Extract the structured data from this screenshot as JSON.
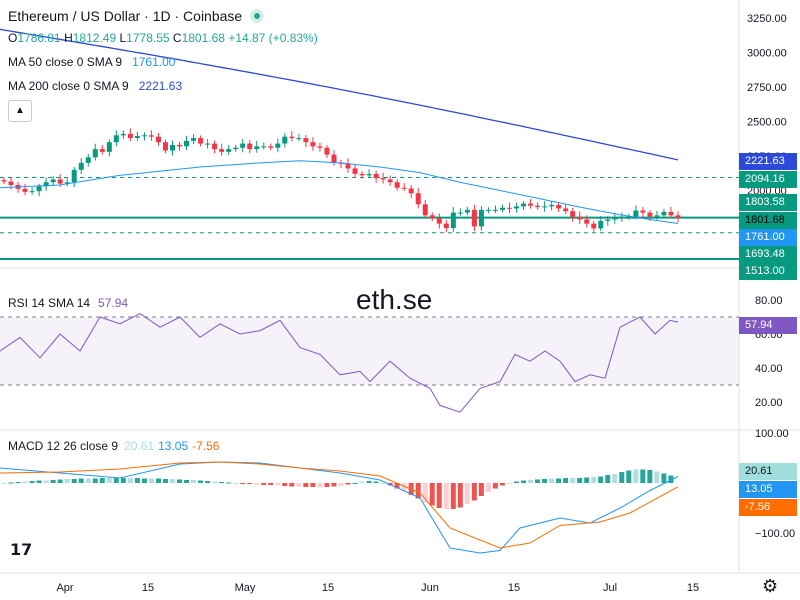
{
  "header": {
    "title": "Ethereum / US Dollar · 1D · Coinbase",
    "ohlc": {
      "o_label": "O",
      "o": "1786.81",
      "h_label": "H",
      "h": "1812.49",
      "l_label": "L",
      "l": "1778.55",
      "c_label": "C",
      "c": "1801.68",
      "change": "+14.87 (+0.83%)"
    },
    "ma50": {
      "label": "MA 50 close 0 SMA 9",
      "value": "1761.00"
    },
    "ma200": {
      "label": "MA 200 close 0 SMA 9",
      "value": "2221.63"
    }
  },
  "watermark": "eth.se",
  "rsi": {
    "label": "RSI 14 SMA 14",
    "value": "57.94"
  },
  "macd": {
    "label": "MACD 12 26 close 9",
    "hist_value": "20.61",
    "macd_value": "13.05",
    "signal_value": "-7.56"
  },
  "price_tags": [
    {
      "value": "2221.63",
      "color": "#2c49d8"
    },
    {
      "value": "2094.16",
      "color": "#089981"
    },
    {
      "value": "1803.58",
      "color": "#089981"
    },
    {
      "value": "1801.68",
      "color": "#089981"
    },
    {
      "value": "1761.00",
      "color": "#2196f3"
    },
    {
      "value": "1693.48",
      "color": "#089981"
    },
    {
      "value": "1513.00",
      "color": "#089981"
    }
  ],
  "rsi_tag": {
    "value": "57.94",
    "color": "#7e57c2"
  },
  "macd_tags": [
    {
      "value": "20.61",
      "color": "#a0dedb"
    },
    {
      "value": "13.05",
      "color": "#2196f3"
    },
    {
      "value": "-7.56",
      "color": "#ff6d00"
    }
  ],
  "icons": {
    "logo": "tradingview-logo-icon",
    "settings": "gear-icon",
    "collapse": "chevron-up-icon"
  },
  "colors": {
    "up": "#089981",
    "down": "#f23645",
    "ma50": "#2196f3",
    "ma200": "#2c49d8",
    "rsi": "#7e57c2",
    "macd_signal": "#ff6d00"
  },
  "chart_data": [
    {
      "type": "candlestick",
      "title": "Ethereum / US Dollar · 1D · Coinbase",
      "x_ticks": [
        "Apr",
        "15",
        "May",
        "15",
        "Jun",
        "15",
        "Jul",
        "15"
      ],
      "y_ticks": [
        3250,
        3000,
        2750,
        2500,
        2250,
        2000,
        1750
      ],
      "ylim": [
        1480,
        3300
      ],
      "price_path": [
        2065,
        2040,
        2012,
        1990,
        1995,
        2030,
        2060,
        2080,
        2050,
        2060,
        2150,
        2200,
        2240,
        2300,
        2280,
        2350,
        2400,
        2410,
        2380,
        2395,
        2400,
        2390,
        2350,
        2290,
        2330,
        2320,
        2360,
        2380,
        2340,
        2340,
        2300,
        2280,
        2300,
        2310,
        2340,
        2300,
        2320,
        2320,
        2310,
        2340,
        2390,
        2380,
        2380,
        2350,
        2320,
        2310,
        2260,
        2200,
        2195,
        2160,
        2120,
        2110,
        2120,
        2090,
        2080,
        2060,
        2020,
        2015,
        1980,
        1900,
        1820,
        1800,
        1760,
        1728,
        1840,
        1840,
        1860,
        1740,
        1860,
        1860,
        1860,
        1875,
        1870,
        1885,
        1905,
        1890,
        1880,
        1885,
        1895,
        1870,
        1850,
        1810,
        1790,
        1760,
        1725,
        1780,
        1790,
        1800,
        1810,
        1810,
        1855,
        1840,
        1810,
        1820,
        1845,
        1820,
        1802
      ],
      "series": [
        {
          "name": "MA 50 close 0 SMA 9",
          "last": 1761.0
        },
        {
          "name": "MA 200 close 0 SMA 9",
          "last": 2221.63
        }
      ],
      "horizontal_levels": [
        2094.16,
        1803.58,
        1693.48,
        1513.0
      ]
    },
    {
      "type": "line",
      "title": "RSI 14 SMA 14",
      "y_ticks": [
        80,
        60,
        40,
        20
      ],
      "ylim": [
        0,
        100
      ],
      "band": [
        30,
        70
      ],
      "last": 57.94
    },
    {
      "type": "bar",
      "title": "MACD 12 26 close 9",
      "y_ticks": [
        100,
        0,
        -100
      ],
      "series": [
        {
          "name": "Histogram",
          "last": 20.61
        },
        {
          "name": "MACD",
          "last": 13.05
        },
        {
          "name": "Signal",
          "last": -7.56
        }
      ]
    }
  ]
}
